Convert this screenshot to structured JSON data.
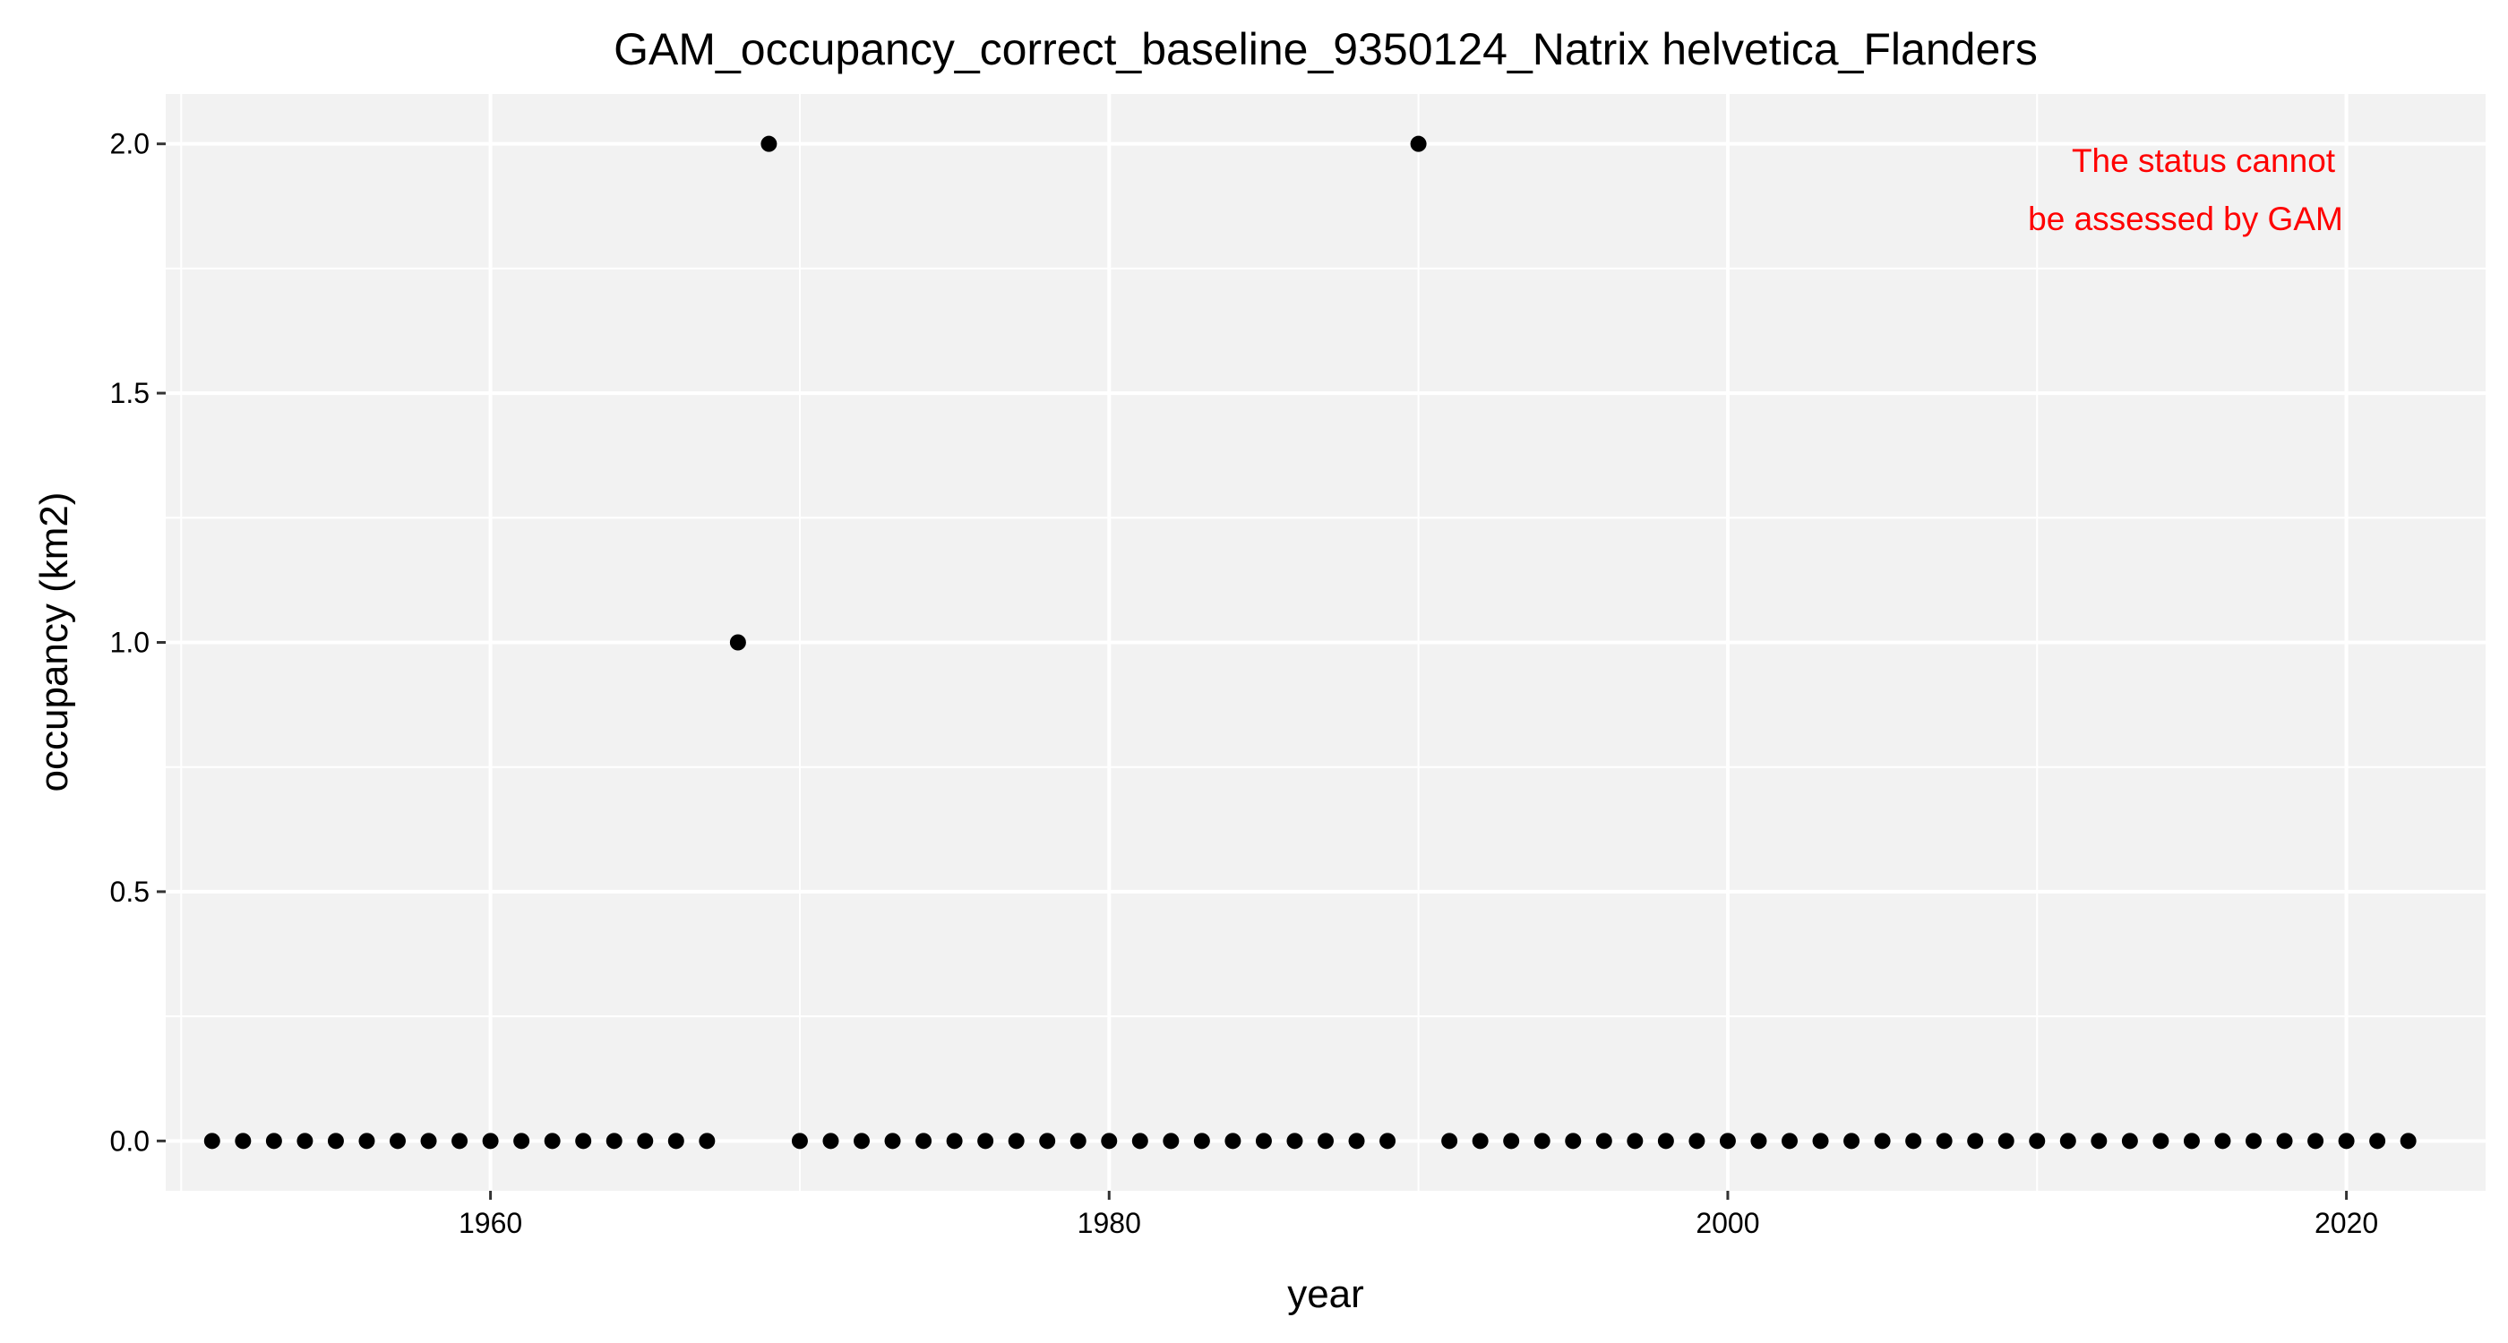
{
  "chart_data": {
    "type": "scatter",
    "title": "GAM_occupancy_correct_baseline_9350124_Natrix helvetica_Flanders",
    "xlabel": "year",
    "ylabel": "occupancy (km2)",
    "xlim": [
      1949.5,
      2024.5
    ],
    "ylim": [
      -0.1,
      2.1
    ],
    "x_ticks": [
      1960,
      1980,
      2000,
      2020
    ],
    "x_tick_labels": [
      "1960",
      "1980",
      "2000",
      "2020"
    ],
    "y_ticks": [
      0,
      0.5,
      1,
      1.5,
      2
    ],
    "y_tick_labels": [
      "0.0",
      "0.5",
      "1.0",
      "1.5",
      "2.0"
    ],
    "grid": true,
    "panel_background": "#f2f2f2",
    "grid_color": "#ffffff",
    "point_color": "#000000",
    "series": [
      {
        "x": [
          1951,
          1952,
          1953,
          1954,
          1955,
          1956,
          1957,
          1958,
          1959,
          1960,
          1961,
          1962,
          1963,
          1964,
          1965,
          1966,
          1967,
          1968,
          1969,
          1970,
          1971,
          1972,
          1973,
          1974,
          1975,
          1976,
          1977,
          1978,
          1979,
          1980,
          1981,
          1982,
          1983,
          1984,
          1985,
          1986,
          1987,
          1988,
          1989,
          1990,
          1991,
          1992,
          1993,
          1994,
          1995,
          1996,
          1997,
          1998,
          1999,
          2000,
          2001,
          2002,
          2003,
          2004,
          2005,
          2006,
          2007,
          2008,
          2009,
          2010,
          2011,
          2012,
          2013,
          2014,
          2015,
          2016,
          2017,
          2018,
          2019,
          2020,
          2021,
          2022
        ],
        "y": [
          0,
          0,
          0,
          0,
          0,
          0,
          0,
          0,
          0,
          0,
          0,
          0,
          0,
          0,
          0,
          0,
          0,
          1,
          2,
          0,
          0,
          0,
          0,
          0,
          0,
          0,
          0,
          0,
          0,
          0,
          0,
          0,
          0,
          0,
          0,
          0,
          0,
          0,
          0,
          2,
          0,
          0,
          0,
          0,
          0,
          0,
          0,
          0,
          0,
          0,
          0,
          0,
          0,
          0,
          0,
          0,
          0,
          0,
          0,
          0,
          0,
          0,
          0,
          0,
          0,
          0,
          0,
          0,
          0,
          0,
          0,
          0
        ]
      }
    ],
    "annotation": {
      "lines": [
        "The status cannot",
        "be assessed by GAM"
      ],
      "color": "#ff0000",
      "placement": "top-right"
    }
  }
}
